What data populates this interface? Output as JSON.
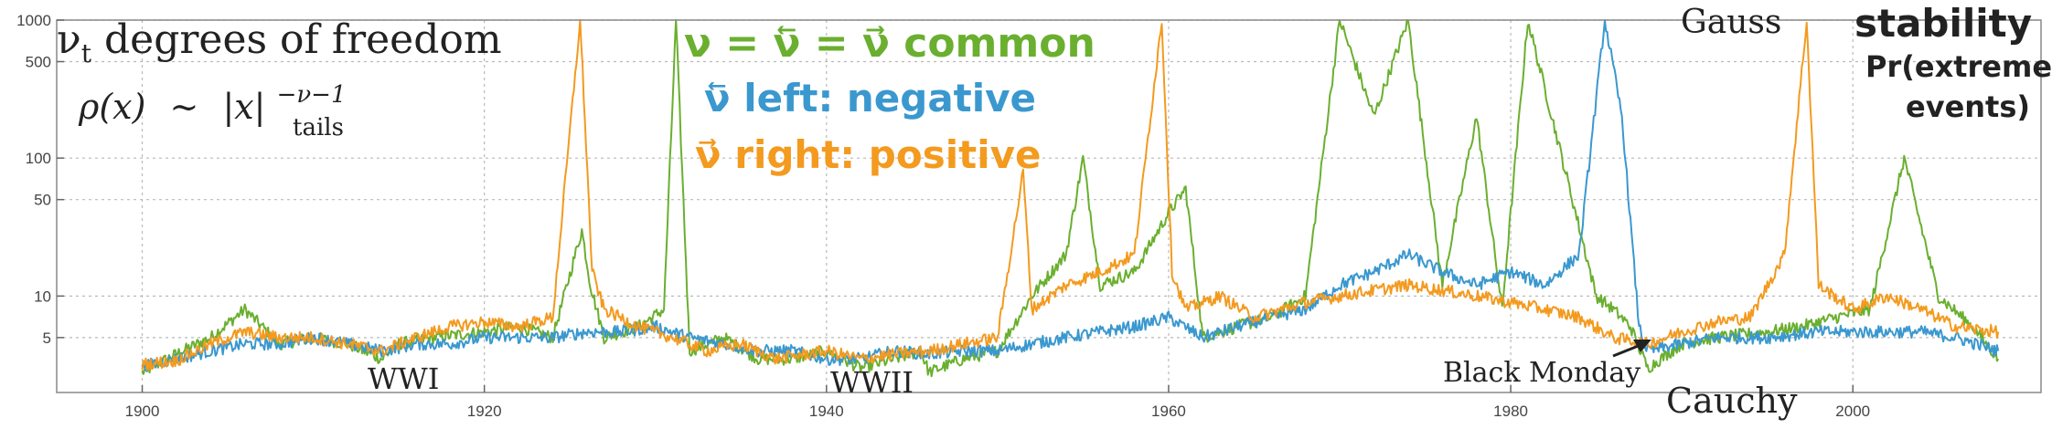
{
  "chart_data": {
    "type": "line",
    "title": "",
    "xlabel": "",
    "ylabel": "",
    "xlim": [
      1895,
      2011
    ],
    "ylim": [
      2,
      1000
    ],
    "y_scale": "log",
    "grid": true,
    "x_ticks": [
      1900,
      1920,
      1940,
      1960,
      1980,
      2000
    ],
    "y_ticks": [
      5,
      10,
      50,
      100,
      500,
      1000
    ],
    "colors": {
      "common": "#6aaf2f",
      "left": "#3a98cf",
      "right": "#f39a1f"
    },
    "series": [
      {
        "name": "common",
        "color": "#6aaf2f",
        "x": [
          1900,
          1902,
          1904,
          1906,
          1907,
          1908,
          1910,
          1912,
          1914,
          1915,
          1917,
          1920,
          1922,
          1924,
          1925.7,
          1926.2,
          1927,
          1929,
          1930.5,
          1931.2,
          1932,
          1934,
          1936,
          1938,
          1940,
          1942,
          1944,
          1945.5,
          1946,
          1948,
          1950,
          1952,
          1954,
          1955,
          1956,
          1958,
          1960,
          1961,
          1962,
          1964,
          1966,
          1968,
          1970,
          1972,
          1974,
          1976,
          1978,
          1979.5,
          1981,
          1983,
          1985,
          1986,
          1987,
          1988,
          1990,
          1992,
          1995,
          1997,
          1999,
          2001,
          2003,
          2005,
          2007,
          2008.5
        ],
        "y": [
          2.8,
          3.8,
          5,
          8,
          6,
          4.5,
          5,
          4.5,
          3.5,
          4.5,
          5,
          5.5,
          6,
          5,
          30,
          12,
          5,
          6,
          8,
          1000,
          4,
          5,
          3.5,
          3.5,
          4,
          3,
          3.5,
          4,
          2.8,
          3.5,
          4,
          10,
          20,
          100,
          12,
          15,
          40,
          60,
          5,
          6,
          7,
          10,
          1000,
          200,
          1000,
          12,
          200,
          8,
          1000,
          100,
          10,
          8,
          6,
          3,
          4.5,
          5,
          5.5,
          6,
          7,
          8,
          100,
          10,
          6,
          3.5
        ]
      },
      {
        "name": "left",
        "color": "#3a98cf",
        "x": [
          1900,
          1902,
          1904,
          1906,
          1908,
          1910,
          1912,
          1914,
          1916,
          1918,
          1920,
          1922,
          1924,
          1926,
          1928,
          1930,
          1932,
          1934,
          1936,
          1938,
          1940,
          1942,
          1944,
          1946,
          1948,
          1950,
          1952,
          1954,
          1956,
          1958,
          1960,
          1962,
          1964,
          1966,
          1968,
          1970,
          1972,
          1974,
          1976,
          1978,
          1980,
          1982,
          1984,
          1985.5,
          1986.5,
          1987.5,
          1988,
          1990,
          1992,
          1995,
          1998,
          2001,
          2004,
          2006,
          2008.5
        ],
        "y": [
          3.1,
          3.5,
          4,
          4.5,
          4.5,
          5,
          4.5,
          4,
          4.5,
          4.5,
          5,
          5,
          5,
          5.5,
          5.5,
          6,
          5,
          4.5,
          4,
          4,
          3.5,
          3.5,
          4,
          3.8,
          4,
          4,
          4.5,
          5,
          5.5,
          6,
          7,
          5,
          6,
          7,
          8,
          12,
          15,
          20,
          15,
          12,
          15,
          12,
          20,
          1000,
          200,
          6,
          4,
          4.5,
          5,
          5,
          5.5,
          5.5,
          5.5,
          5,
          4
        ]
      },
      {
        "name": "right",
        "color": "#f39a1f",
        "x": [
          1900,
          1902,
          1904,
          1906,
          1908,
          1910,
          1912,
          1914,
          1916,
          1918,
          1920,
          1922,
          1924,
          1925.6,
          1926.3,
          1927,
          1929,
          1931,
          1933,
          1935,
          1937,
          1940,
          1942,
          1944,
          1946,
          1948,
          1950,
          1951.5,
          1952,
          1954,
          1956,
          1958,
          1959.6,
          1960.2,
          1961,
          1963,
          1965,
          1968,
          1970,
          1972,
          1974,
          1976,
          1978,
          1980,
          1982,
          1984,
          1986,
          1988,
          1990,
          1992,
          1994,
          1996,
          1997.3,
          1998,
          2000,
          2002,
          2004,
          2006,
          2008.5
        ],
        "y": [
          3.2,
          3.4,
          4.5,
          5.5,
          5,
          5,
          4.5,
          4,
          5,
          6,
          6.5,
          6,
          7,
          1000,
          15,
          8,
          6,
          5,
          4,
          4.5,
          3.5,
          4,
          3.5,
          3.8,
          4,
          4.5,
          5,
          80,
          8,
          12,
          15,
          20,
          1000,
          15,
          8,
          10,
          7,
          9,
          10,
          11,
          12,
          11,
          10,
          9,
          8,
          7,
          5,
          4.5,
          5.5,
          6.5,
          7,
          20,
          1000,
          12,
          8,
          10,
          8,
          6,
          5.5
        ]
      }
    ],
    "annotations": {
      "title_line": "ν",
      "title_sub": "t",
      "title_rest": " degrees of freedom",
      "formula_lhs": "ρ(x)",
      "formula_sim": "∼",
      "formula_abs": "|x|",
      "formula_exp": "−ν−1",
      "formula_sub": "tails",
      "legend_common": "ν = ν⃖ = ν⃗ common",
      "legend_left": "ν⃖ left: negative",
      "legend_right": "ν⃗ right: positive",
      "gauss": "Gauss",
      "cauchy": "Cauchy",
      "stability": "stability",
      "pr_line1": "Pr(extreme",
      "pr_line2": "events)",
      "wwi": "WWI",
      "wwii": "WWII",
      "black_monday": "Black Monday"
    }
  }
}
